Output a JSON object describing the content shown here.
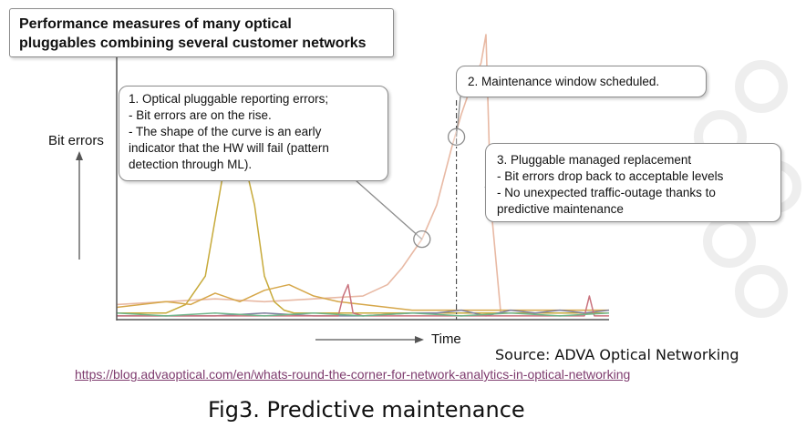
{
  "title_lines": [
    "Performance measures of many optical",
    "pluggables combining several customer networks"
  ],
  "ylabel": "Bit errors",
  "xlabel": "Time",
  "callouts": [
    {
      "lines": [
        "1. Optical pluggable reporting errors;",
        "- Bit errors are on the rise.",
        "- The shape of the curve is an early",
        "indicator that the HW will fail (pattern",
        "detection through ML)."
      ]
    },
    {
      "lines": [
        "2. Maintenance window scheduled."
      ]
    },
    {
      "lines": [
        "3. Pluggable managed replacement",
        "- Bit errors drop back to acceptable levels",
        "- No unexpected traffic-outage thanks to",
        "predictive maintenance"
      ]
    }
  ],
  "source": "Source: ADVA Optical Networking",
  "url": "https://blog.advaoptical.com/en/whats-round-the-corner-for-network-analytics-in-optical-networking",
  "caption": "Fig3. Predictive maintenance",
  "chart_data": {
    "type": "line",
    "title": "Performance measures of many optical pluggables combining several customer networks",
    "xlabel": "Time",
    "ylabel": "Bit errors",
    "xlim": [
      0,
      100
    ],
    "ylim": [
      0,
      100
    ],
    "grid": false,
    "series": [
      {
        "color": "#e8b9a4",
        "x": [
          0,
          10,
          20,
          30,
          40,
          50,
          55,
          58,
          62,
          65,
          68,
          70,
          72,
          74,
          75,
          76,
          78,
          80,
          85,
          90,
          95,
          100
        ],
        "y": [
          5,
          6,
          7,
          6,
          7,
          8,
          12,
          18,
          28,
          40,
          60,
          72,
          82,
          90,
          100,
          40,
          2,
          2,
          2,
          2,
          2,
          2
        ]
      },
      {
        "color": "#c7aa3a",
        "x": [
          0,
          10,
          14,
          18,
          20,
          22,
          24,
          26,
          28,
          30,
          32,
          34,
          36,
          40,
          45,
          50,
          60,
          70,
          80,
          90,
          100
        ],
        "y": [
          2,
          2,
          5,
          15,
          35,
          55,
          68,
          55,
          40,
          15,
          6,
          3,
          2,
          2,
          2,
          2,
          2,
          2,
          2,
          2,
          2
        ]
      },
      {
        "color": "#d6a74a",
        "x": [
          0,
          5,
          10,
          15,
          20,
          25,
          30,
          35,
          40,
          45,
          50,
          55,
          60,
          70,
          80,
          90,
          100
        ],
        "y": [
          4,
          5,
          6,
          5,
          9,
          6,
          10,
          12,
          8,
          6,
          5,
          4,
          3,
          3,
          3,
          3,
          3
        ]
      },
      {
        "color": "#7f7f9e",
        "x": [
          0,
          10,
          20,
          30,
          40,
          50,
          60,
          65,
          70,
          75,
          80,
          85,
          90,
          95,
          100
        ],
        "y": [
          1,
          1,
          1,
          2,
          1,
          1,
          2,
          2,
          3,
          1,
          3,
          2,
          3,
          2,
          3
        ]
      },
      {
        "color": "#c9727d",
        "x": [
          0,
          20,
          30,
          45,
          46,
          47,
          48,
          50,
          60,
          70,
          80,
          95,
          96,
          97,
          100
        ],
        "y": [
          1,
          1,
          1,
          1,
          8,
          12,
          2,
          1,
          1,
          1,
          1,
          1,
          8,
          1,
          1
        ]
      },
      {
        "color": "#6fb58a",
        "x": [
          0,
          10,
          20,
          30,
          40,
          50,
          60,
          70,
          80,
          90,
          100
        ],
        "y": [
          2,
          1,
          2,
          1,
          2,
          1,
          2,
          1,
          2,
          1,
          2
        ]
      }
    ],
    "annotations": [
      {
        "text": "1. Optical pluggable reporting errors",
        "x": 62,
        "y": 28
      },
      {
        "text": "2. Maintenance window scheduled.",
        "x": 69,
        "y": 64
      },
      {
        "text": "3. Pluggable managed replacement",
        "x": 77,
        "y": 40
      }
    ],
    "maintenance_marker_x": 69
  }
}
